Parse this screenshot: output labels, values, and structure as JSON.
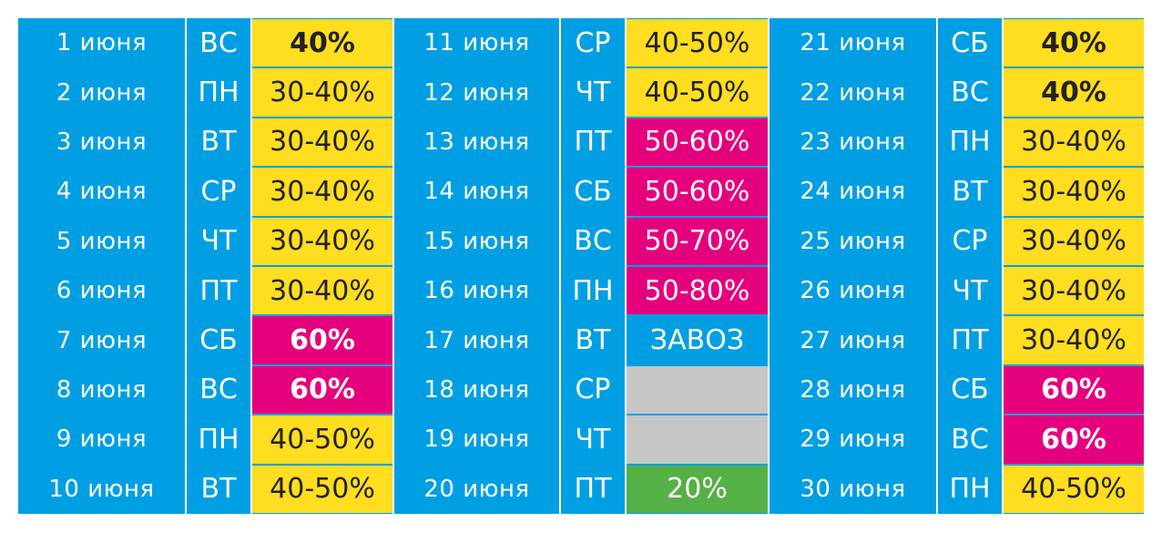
{
  "colors": {
    "blue": "#009fe3",
    "yellow": "#ffdd1f",
    "magenta": "#e5007e",
    "grey": "#c6c6c6",
    "green": "#55b046"
  },
  "columns": [
    {
      "rows": [
        {
          "date": "1 июня",
          "day": "ВС",
          "discount": "40%",
          "color": "yellow",
          "bold": true
        },
        {
          "date": "2 июня",
          "day": "ПН",
          "discount": "30-40%",
          "color": "yellow",
          "bold": false
        },
        {
          "date": "3 июня",
          "day": "ВТ",
          "discount": "30-40%",
          "color": "yellow",
          "bold": false
        },
        {
          "date": "4 июня",
          "day": "СР",
          "discount": "30-40%",
          "color": "yellow",
          "bold": false
        },
        {
          "date": "5 июня",
          "day": "ЧТ",
          "discount": "30-40%",
          "color": "yellow",
          "bold": false
        },
        {
          "date": "6 июня",
          "day": "ПТ",
          "discount": "30-40%",
          "color": "yellow",
          "bold": false
        },
        {
          "date": "7 июня",
          "day": "СБ",
          "discount": "60%",
          "color": "magenta",
          "bold": true
        },
        {
          "date": "8 июня",
          "day": "ВС",
          "discount": "60%",
          "color": "magenta",
          "bold": true
        },
        {
          "date": "9 июня",
          "day": "ПН",
          "discount": "40-50%",
          "color": "yellow",
          "bold": false
        },
        {
          "date": "10 июня",
          "day": "ВТ",
          "discount": "40-50%",
          "color": "yellow",
          "bold": false
        }
      ]
    },
    {
      "rows": [
        {
          "date": "11 июня",
          "day": "СР",
          "discount": "40-50%",
          "color": "yellow",
          "bold": false
        },
        {
          "date": "12 июня",
          "day": "ЧТ",
          "discount": "40-50%",
          "color": "yellow",
          "bold": false
        },
        {
          "date": "13 июня",
          "day": "ПТ",
          "discount": "50-60%",
          "color": "magenta",
          "bold": false
        },
        {
          "date": "14 июня",
          "day": "СБ",
          "discount": "50-60%",
          "color": "magenta",
          "bold": false
        },
        {
          "date": "15 июня",
          "day": "ВС",
          "discount": "50-70%",
          "color": "magenta",
          "bold": false
        },
        {
          "date": "16 июня",
          "day": "ПН",
          "discount": "50-80%",
          "color": "magenta",
          "bold": false
        },
        {
          "date": "17 июня",
          "day": "ВТ",
          "discount": "ЗАВОЗ",
          "color": "blue",
          "bold": false
        },
        {
          "date": "18 июня",
          "day": "СР",
          "discount": "",
          "color": "grey",
          "bold": false
        },
        {
          "date": "19 июня",
          "day": "ЧТ",
          "discount": "",
          "color": "grey",
          "bold": false
        },
        {
          "date": "20 июня",
          "day": "ПТ",
          "discount": "20%",
          "color": "green",
          "bold": false
        }
      ]
    },
    {
      "rows": [
        {
          "date": "21 июня",
          "day": "СБ",
          "discount": "40%",
          "color": "yellow",
          "bold": true
        },
        {
          "date": "22 июня",
          "day": "ВС",
          "discount": "40%",
          "color": "yellow",
          "bold": true
        },
        {
          "date": "23 июня",
          "day": "ПН",
          "discount": "30-40%",
          "color": "yellow",
          "bold": false
        },
        {
          "date": "24 июня",
          "day": "ВТ",
          "discount": "30-40%",
          "color": "yellow",
          "bold": false
        },
        {
          "date": "25 июня",
          "day": "СР",
          "discount": "30-40%",
          "color": "yellow",
          "bold": false
        },
        {
          "date": "26 июня",
          "day": "ЧТ",
          "discount": "30-40%",
          "color": "yellow",
          "bold": false
        },
        {
          "date": "27 июня",
          "day": "ПТ",
          "discount": "30-40%",
          "color": "yellow",
          "bold": false
        },
        {
          "date": "28 июня",
          "day": "СБ",
          "discount": "60%",
          "color": "magenta",
          "bold": true
        },
        {
          "date": "29 июня",
          "day": "ВС",
          "discount": "60%",
          "color": "magenta",
          "bold": true
        },
        {
          "date": "30 июня",
          "day": "ПН",
          "discount": "40-50%",
          "color": "yellow",
          "bold": false
        }
      ]
    }
  ]
}
